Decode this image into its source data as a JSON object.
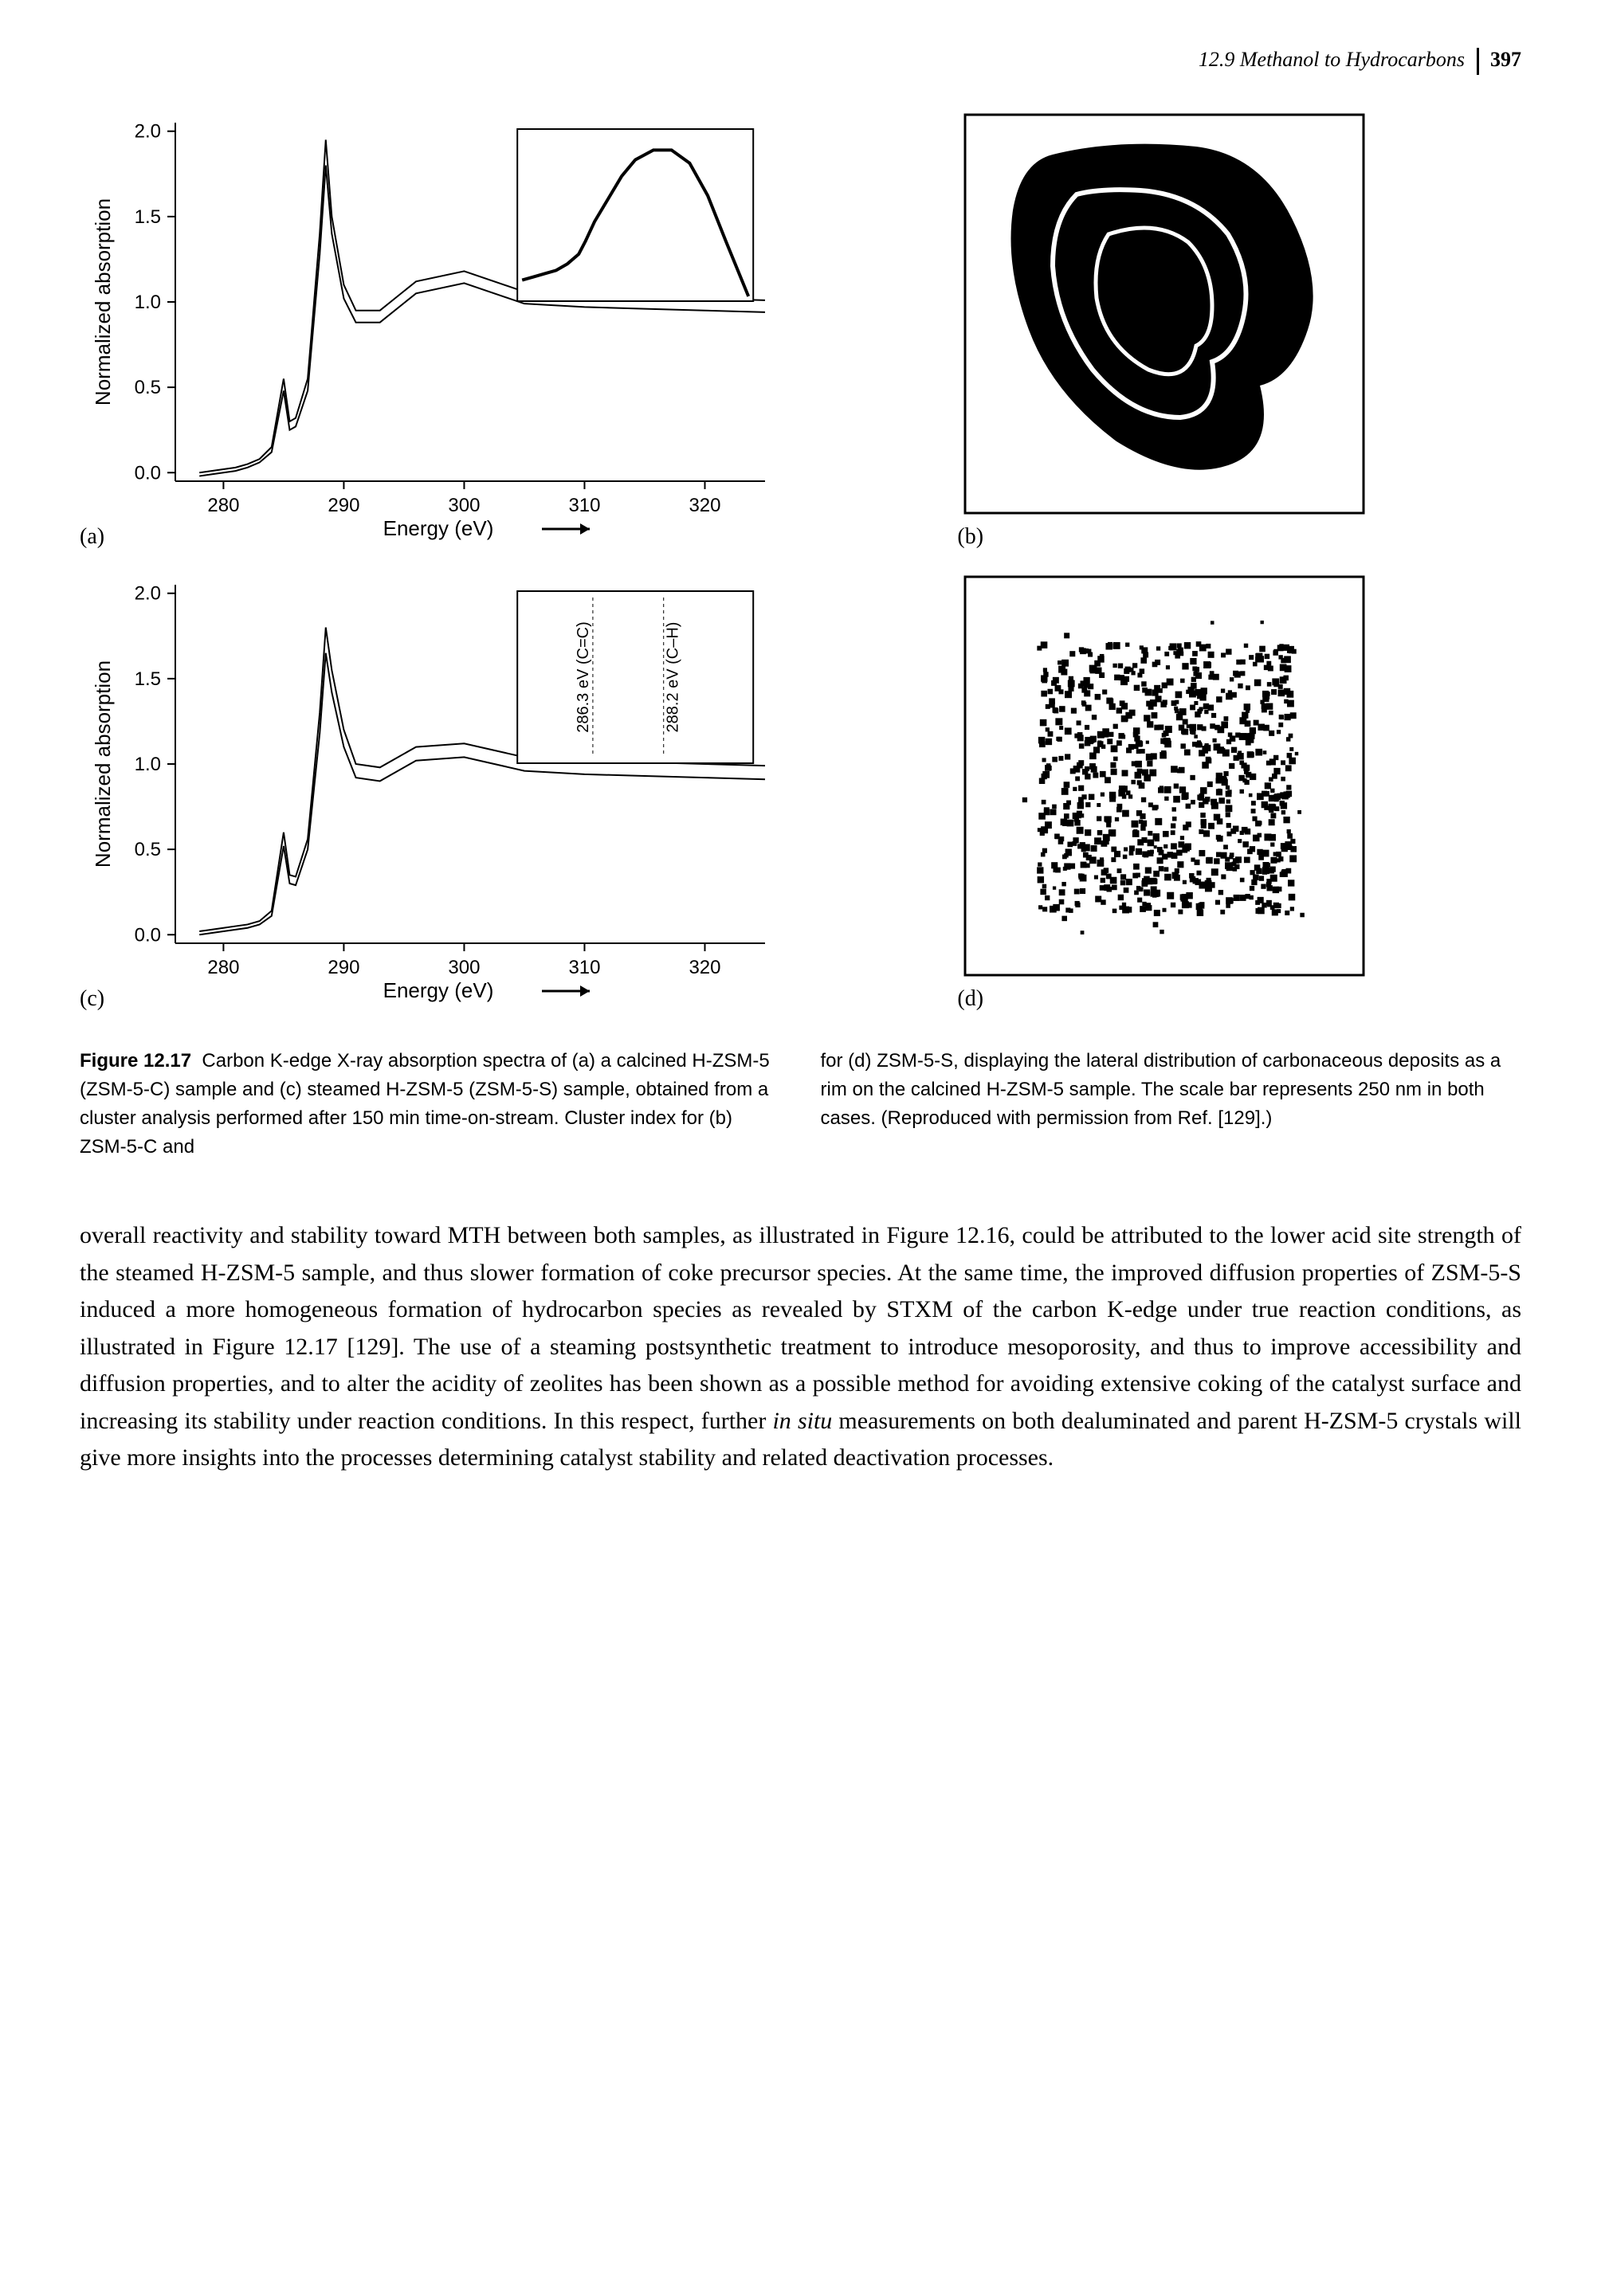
{
  "header": {
    "section": "12.9 Methanol to Hydrocarbons",
    "page": "397"
  },
  "panels": {
    "a": {
      "label": "(a)"
    },
    "b": {
      "label": "(b)"
    },
    "c": {
      "label": "(c)"
    },
    "d": {
      "label": "(d)"
    }
  },
  "chart_a": {
    "type": "line",
    "xlabel": "Energy (eV)",
    "ylabel": "Normalized absorption",
    "xlim": [
      276,
      325
    ],
    "ylim": [
      -0.05,
      2.05
    ],
    "xticks": [
      280,
      290,
      300,
      310,
      320
    ],
    "yticks": [
      0.0,
      0.5,
      1.0,
      1.5,
      2.0
    ],
    "ytick_labels": [
      "0.0",
      "0.5",
      "1.0",
      "1.5",
      "2.0"
    ],
    "label_fontsize": 26,
    "tick_fontsize": 24,
    "line_width": 2,
    "line_color": "#000000",
    "grid_color": "#000000",
    "background_color": "#ffffff",
    "has_inset": true,
    "series": [
      {
        "name": "upper",
        "x": [
          278,
          280,
          281,
          282,
          283,
          284,
          285,
          285.5,
          286,
          287,
          288,
          288.5,
          289,
          290,
          291,
          293,
          296,
          300,
          305,
          310,
          315,
          320,
          325
        ],
        "y": [
          0.0,
          0.02,
          0.03,
          0.05,
          0.08,
          0.15,
          0.55,
          0.3,
          0.32,
          0.55,
          1.4,
          1.95,
          1.5,
          1.1,
          0.95,
          0.95,
          1.12,
          1.18,
          1.06,
          1.04,
          1.03,
          1.02,
          1.01
        ]
      },
      {
        "name": "lower",
        "x": [
          278,
          280,
          281,
          282,
          283,
          284,
          285,
          285.5,
          286,
          287,
          288,
          288.5,
          289,
          290,
          291,
          293,
          296,
          300,
          305,
          310,
          315,
          320,
          325
        ],
        "y": [
          -0.02,
          0.0,
          0.01,
          0.03,
          0.06,
          0.12,
          0.48,
          0.25,
          0.27,
          0.48,
          1.28,
          1.8,
          1.4,
          1.02,
          0.88,
          0.88,
          1.05,
          1.11,
          0.99,
          0.97,
          0.96,
          0.95,
          0.94
        ]
      }
    ],
    "inset": {
      "pos": "top-right",
      "series": [
        {
          "x": [
            0,
            5,
            10,
            15,
            20,
            25,
            28,
            32,
            38,
            44,
            50,
            58,
            66,
            74,
            82,
            90,
            100
          ],
          "y": [
            90,
            88,
            86,
            84,
            80,
            74,
            66,
            54,
            40,
            26,
            16,
            10,
            10,
            18,
            38,
            66,
            100
          ]
        }
      ]
    }
  },
  "chart_c": {
    "type": "line",
    "xlabel": "Energy (eV)",
    "ylabel": "Normalized absorption",
    "xlim": [
      276,
      325
    ],
    "ylim": [
      -0.05,
      2.05
    ],
    "xticks": [
      280,
      290,
      300,
      310,
      320
    ],
    "yticks": [
      0.0,
      0.5,
      1.0,
      1.5,
      2.0
    ],
    "ytick_labels": [
      "0.0",
      "0.5",
      "1.0",
      "1.5",
      "2.0"
    ],
    "label_fontsize": 26,
    "tick_fontsize": 24,
    "line_width": 2,
    "line_color": "#000000",
    "has_inset": true,
    "inset_label_left": "286.3 eV (C=C)",
    "inset_label_right": "288.2 eV (C–H)",
    "series": [
      {
        "name": "upper",
        "x": [
          278,
          280,
          281,
          282,
          283,
          284,
          285,
          285.5,
          286,
          287,
          288,
          288.5,
          289,
          290,
          291,
          293,
          296,
          300,
          305,
          310,
          315,
          320,
          325
        ],
        "y": [
          0.02,
          0.04,
          0.05,
          0.06,
          0.08,
          0.14,
          0.6,
          0.35,
          0.34,
          0.56,
          1.3,
          1.8,
          1.55,
          1.2,
          1.0,
          0.98,
          1.1,
          1.12,
          1.04,
          1.02,
          1.01,
          1.0,
          0.99
        ]
      },
      {
        "name": "lower",
        "x": [
          278,
          280,
          281,
          282,
          283,
          284,
          285,
          285.5,
          286,
          287,
          288,
          288.5,
          289,
          290,
          291,
          293,
          296,
          300,
          305,
          310,
          315,
          320,
          325
        ],
        "y": [
          0.0,
          0.02,
          0.03,
          0.04,
          0.06,
          0.11,
          0.52,
          0.3,
          0.29,
          0.5,
          1.18,
          1.65,
          1.42,
          1.1,
          0.92,
          0.9,
          1.02,
          1.04,
          0.96,
          0.94,
          0.93,
          0.92,
          0.91
        ]
      }
    ]
  },
  "image_b": {
    "type": "microscopy-blob",
    "border": true
  },
  "image_d": {
    "type": "microscopy-scatter",
    "border": true
  },
  "caption": {
    "fig_label": "Figure 12.17",
    "col1": "Carbon K-edge X-ray absorption spectra of (a) a calcined H-ZSM-5 (ZSM-5-C) sample and (c) steamed H-ZSM-5 (ZSM-5-S) sample, obtained from a cluster analysis performed after 150 min time-on-stream. Cluster index for (b) ZSM-5-C and",
    "col2": "for (d) ZSM-5-S, displaying the lateral distribution of carbonaceous deposits as a rim on the calcined H-ZSM-5 sample. The scale bar represents 250 nm in both cases. (Reproduced with permission from Ref. [129].)"
  },
  "body": "overall reactivity and stability toward MTH between both samples, as illustrated in Figure 12.16, could be attributed to the lower acid site strength of the steamed H-ZSM-5 sample, and thus slower formation of coke precursor species. At the same time, the improved diffusion properties of ZSM-5-S induced a more homogeneous formation of hydrocarbon species as revealed by STXM of the carbon K-edge under true reaction conditions, as illustrated in Figure 12.17 [129]. The use of a steaming postsynthetic treatment to introduce mesoporosity, and thus to improve accessibility and diffusion properties, and to alter the acidity of zeolites has been shown as a possible method for avoiding extensive coking of the catalyst surface and increasing its stability under reaction conditions. In this respect, further in situ measurements on both dealuminated and parent H-ZSM-5 crystals will give more insights into the processes determining catalyst stability and related deactivation processes."
}
